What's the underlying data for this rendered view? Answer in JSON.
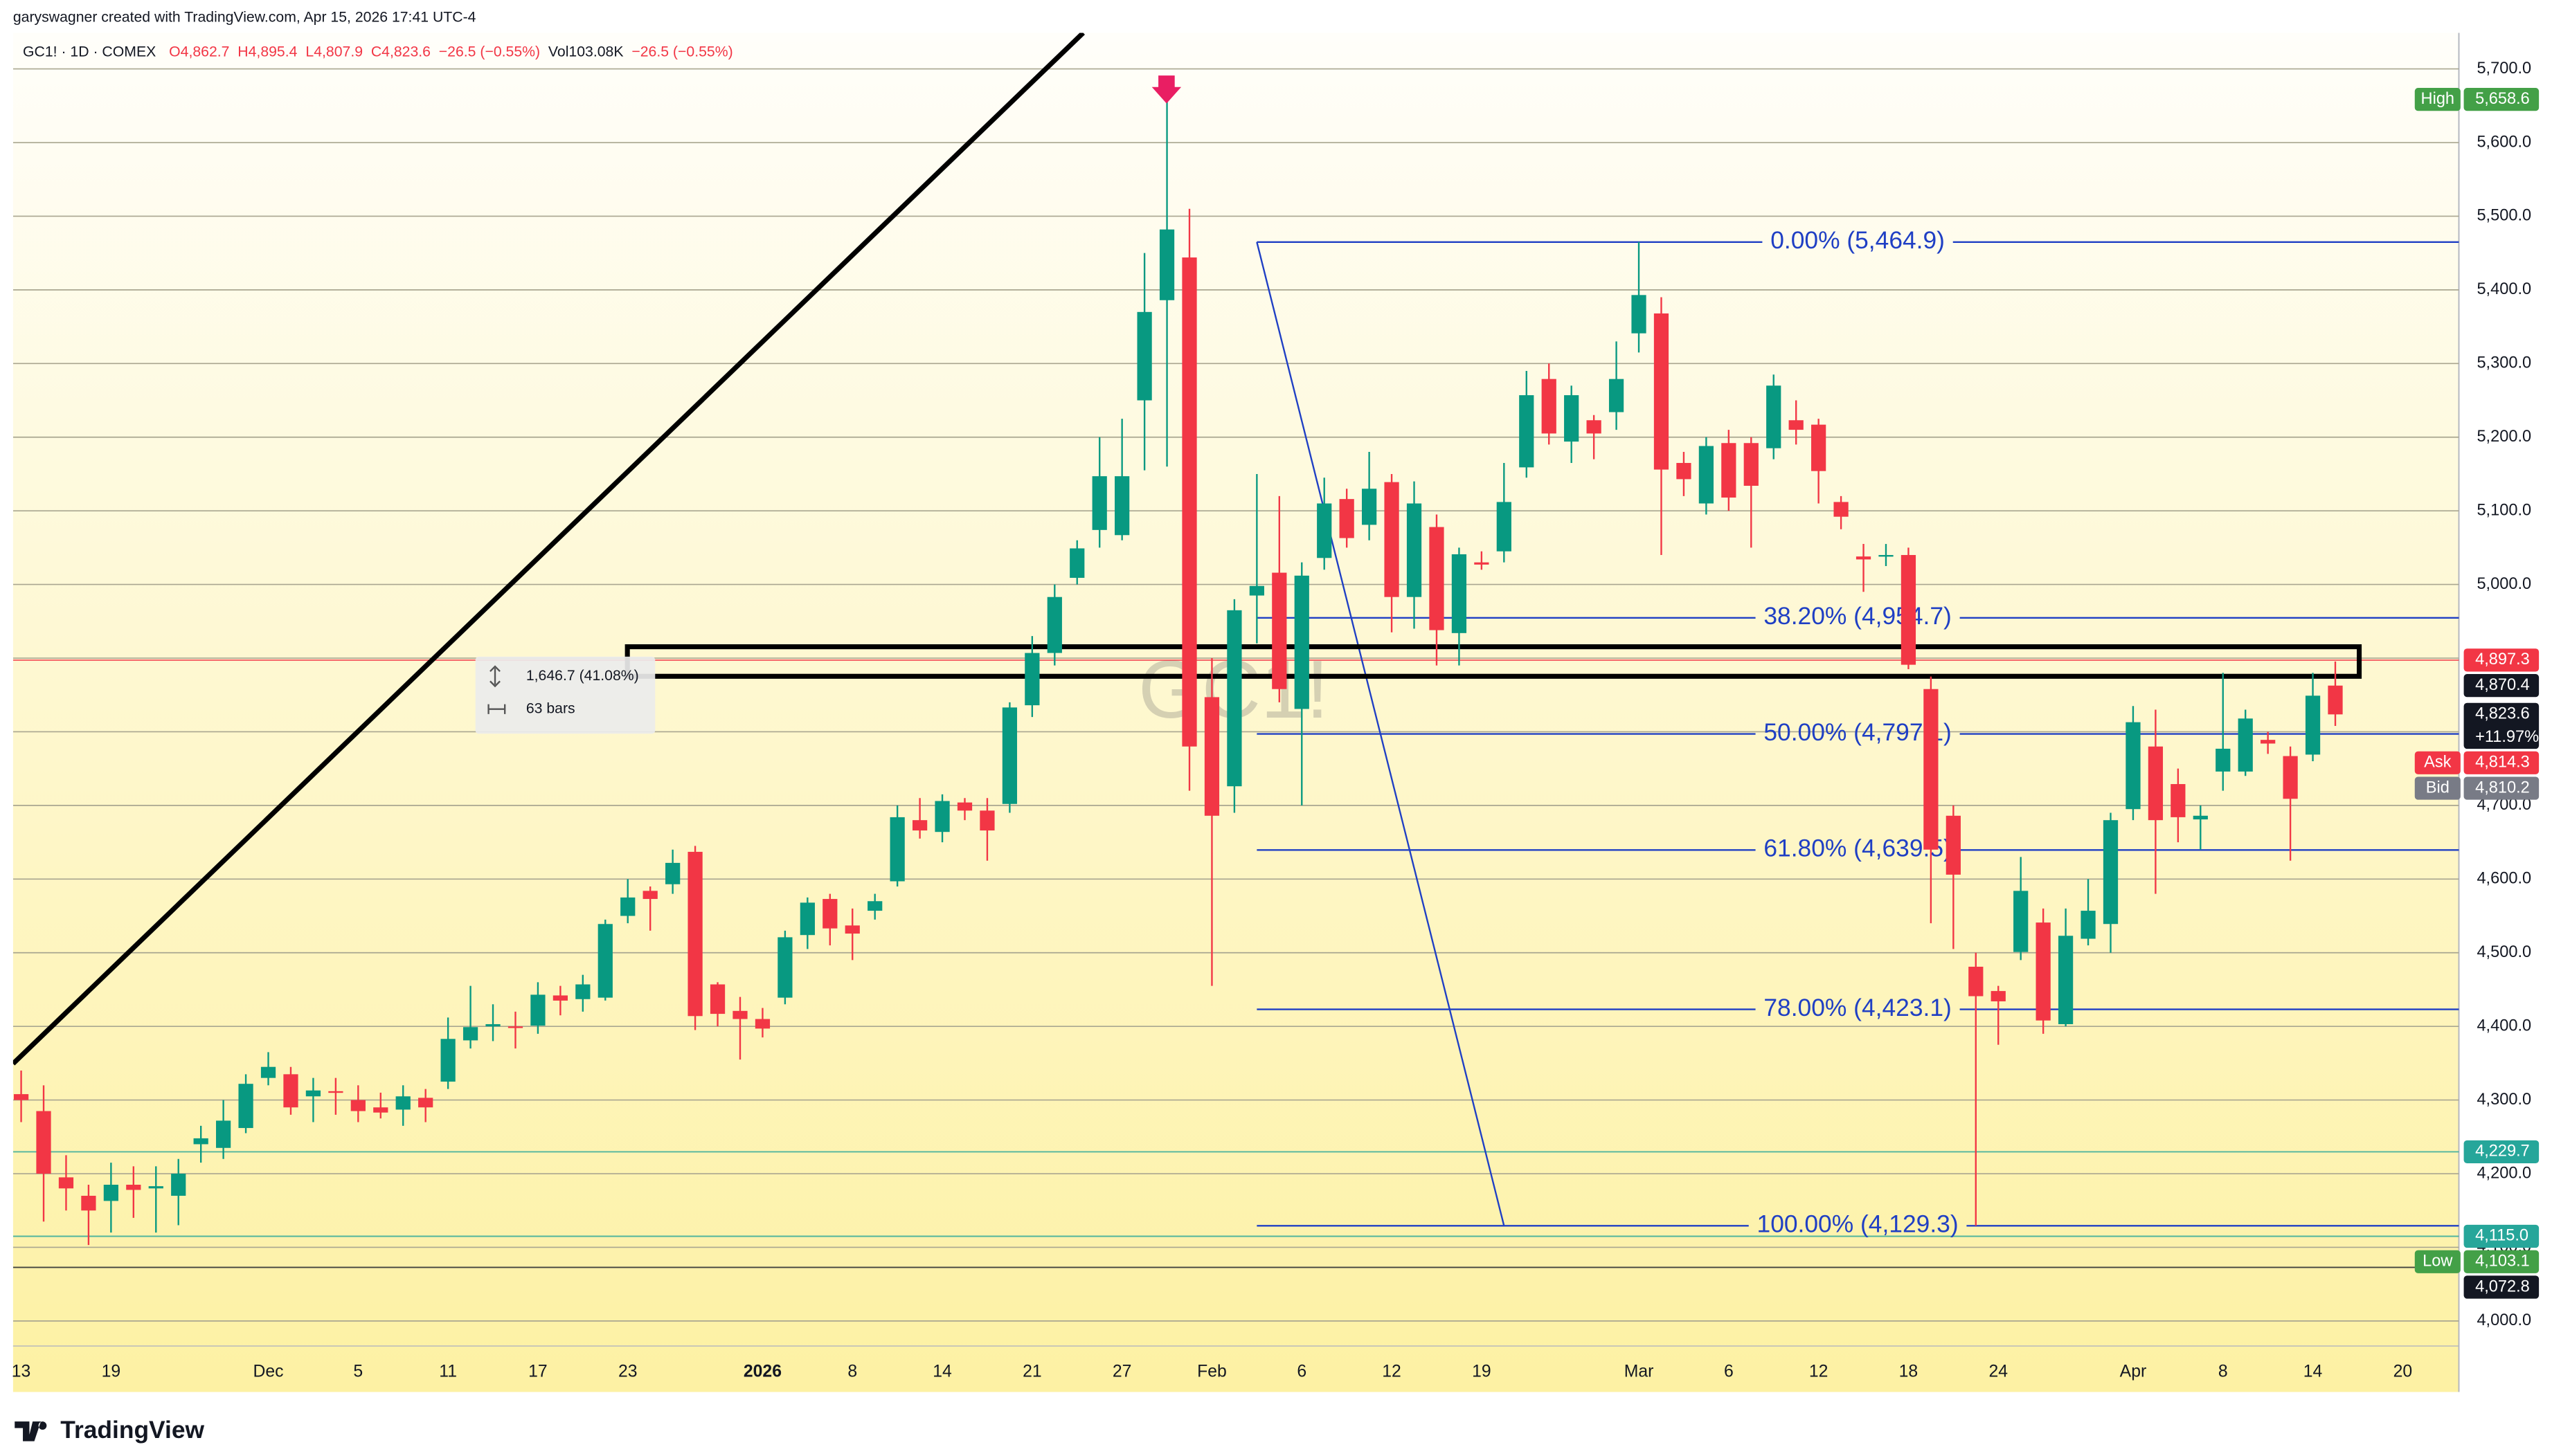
{
  "header": {
    "credit": "garyswagner created with TradingView.com, Apr 15, 2026 17:41 UTC-4",
    "symbol": "GC1! · 1D · COMEX",
    "ohlc": [
      "O4,862.7",
      "H4,895.4",
      "L4,807.9",
      "C4,823.6",
      "−26.5 (−0.55%)"
    ],
    "volume": [
      "Vol103.08K",
      "−26.5 (−0.55%)"
    ]
  },
  "measure": {
    "price": "1,646.7 (41.08%)",
    "bars": "63 bars"
  },
  "watermark": "GC1!",
  "footer": {
    "logo": "TradingView"
  },
  "chart_data": {
    "type": "candlestick",
    "up_color": "#089981",
    "down_color": "#f23645",
    "xlim": [
      -0.36,
      108.5
    ],
    "xticks": [
      {
        "value": 0,
        "label": "13"
      },
      {
        "value": 4,
        "label": "19"
      },
      {
        "value": 11,
        "label": "Dec"
      },
      {
        "value": 15,
        "label": "5"
      },
      {
        "value": 19,
        "label": "11"
      },
      {
        "value": 23,
        "label": "17"
      },
      {
        "value": 27,
        "label": "23"
      },
      {
        "value": 33,
        "label": "2026",
        "bold": true
      },
      {
        "value": 37,
        "label": "8"
      },
      {
        "value": 41,
        "label": "14"
      },
      {
        "value": 45,
        "label": "21"
      },
      {
        "value": 49,
        "label": "27"
      },
      {
        "value": 53,
        "label": "Feb"
      },
      {
        "value": 57,
        "label": "6"
      },
      {
        "value": 61,
        "label": "12"
      },
      {
        "value": 65,
        "label": "19"
      },
      {
        "value": 72,
        "label": "Mar"
      },
      {
        "value": 76,
        "label": "6"
      },
      {
        "value": 80,
        "label": "12"
      },
      {
        "value": 84,
        "label": "18"
      },
      {
        "value": 88,
        "label": "24"
      },
      {
        "value": 94,
        "label": "Apr"
      },
      {
        "value": 98,
        "label": "8"
      },
      {
        "value": 102,
        "label": "14"
      },
      {
        "value": 106,
        "label": "20"
      }
    ],
    "ylim": [
      3966,
      5749
    ],
    "yticks": [
      {
        "value": 4000,
        "label": "4,000.0"
      },
      {
        "value": 4100,
        "label": "4,100.0"
      },
      {
        "value": 4200,
        "label": "4,200.0"
      },
      {
        "value": 4300,
        "label": "4,300.0"
      },
      {
        "value": 4400,
        "label": "4,400.0"
      },
      {
        "value": 4500,
        "label": "4,500.0"
      },
      {
        "value": 4600,
        "label": "4,600.0"
      },
      {
        "value": 4700,
        "label": "4,700.0"
      },
      {
        "value": 4800,
        "label": "4,800.0"
      },
      {
        "value": 4900,
        "label": "4,900.0"
      },
      {
        "value": 5000,
        "label": "5,000.0"
      },
      {
        "value": 5100,
        "label": "5,100.0"
      },
      {
        "value": 5200,
        "label": "5,200.0"
      },
      {
        "value": 5300,
        "label": "5,300.0"
      },
      {
        "value": 5400,
        "label": "5,400.0"
      },
      {
        "value": 5500,
        "label": "5,500.0"
      },
      {
        "value": 5600,
        "label": "5,600.0"
      },
      {
        "value": 5700,
        "label": "5,700.0"
      }
    ],
    "grid": true,
    "open": [
      4308,
      4285,
      4195,
      4170,
      4163,
      4185,
      4180,
      4170,
      4240,
      4235,
      4262,
      4330,
      4335,
      4305,
      4312,
      4300,
      4290,
      4287,
      4303,
      4325,
      4381,
      4400,
      4400,
      4401,
      4442,
      4437,
      4439,
      4550,
      4584,
      4593,
      4637,
      4457,
      4421,
      4410,
      4439,
      4524,
      4573,
      4537,
      4557,
      4597,
      4680,
      4664,
      4704,
      4693,
      4702,
      4836,
      4907,
      5009,
      5074,
      5067,
      5250,
      5386,
      5444,
      4847,
      4726,
      4985,
      5016,
      4831,
      5036,
      5116,
      5081,
      5139,
      4983,
      5078,
      4934,
      5030,
      5045,
      5159,
      5279,
      5194,
      5223,
      5234,
      5341,
      5368,
      5165,
      5110,
      5192,
      5192,
      5185,
      5223,
      5217,
      5112,
      5038,
      5038,
      5040,
      4858,
      4686,
      4481,
      4448,
      4501,
      4541,
      4403,
      4519,
      4539,
      4695,
      4780,
      4729,
      4681,
      4746,
      4746,
      4789,
      4767,
      4769,
      4862.7
    ],
    "high": [
      4340,
      4320,
      4225,
      4185,
      4215,
      4210,
      4210,
      4220,
      4265,
      4300,
      4335,
      4365,
      4345,
      4330,
      4330,
      4320,
      4310,
      4320,
      4315,
      4412,
      4455,
      4430,
      4420,
      4460,
      4455,
      4470,
      4545,
      4600,
      4590,
      4640,
      4645,
      4460,
      4440,
      4425,
      4530,
      4575,
      4580,
      4560,
      4580,
      4700,
      4710,
      4715,
      4710,
      4710,
      4840,
      4930,
      5000,
      5060,
      5200,
      5225,
      5450,
      5658.6,
      5510,
      4900,
      4980,
      5150,
      5120,
      5030,
      5145,
      5130,
      5180,
      5150,
      5140,
      5095,
      5050,
      5045,
      5165,
      5290,
      5300,
      5270,
      5230,
      5330,
      5464.9,
      5390,
      5180,
      5200,
      5210,
      5200,
      5285,
      5250,
      5225,
      5120,
      5055,
      5055,
      5050,
      4875,
      4700,
      4500,
      4455,
      4630,
      4560,
      4560,
      4600,
      4690,
      4835,
      4830,
      4750,
      4700,
      4880,
      4830,
      4800,
      4780,
      4880,
      4895.4
    ],
    "low": [
      4270,
      4135,
      4150,
      4103.1,
      4120,
      4140,
      4120,
      4130,
      4215,
      4220,
      4255,
      4320,
      4280,
      4270,
      4280,
      4270,
      4275,
      4265,
      4270,
      4315,
      4370,
      4380,
      4370,
      4390,
      4415,
      4420,
      4435,
      4540,
      4530,
      4580,
      4395,
      4400,
      4355,
      4385,
      4430,
      4505,
      4510,
      4490,
      4545,
      4590,
      4655,
      4650,
      4680,
      4625,
      4690,
      4820,
      4890,
      5000,
      5050,
      5060,
      5155,
      5160,
      4720,
      4455,
      4690,
      4920,
      4840,
      4700,
      5020,
      5050,
      5060,
      4935,
      4940,
      4890,
      4890,
      5020,
      5030,
      5145,
      5190,
      5165,
      5170,
      5210,
      5315,
      5040,
      5120,
      5095,
      5100,
      5050,
      5170,
      5190,
      5110,
      5075,
      4990,
      5025,
      4885,
      4540,
      4505,
      4129.3,
      4375,
      4490,
      4390,
      4400,
      4510,
      4500,
      4680,
      4580,
      4650,
      4640,
      4720,
      4740,
      4770,
      4625,
      4760,
      4807.9
    ],
    "close": [
      4300,
      4200,
      4180,
      4150,
      4185,
      4178,
      4183,
      4200,
      4248,
      4272,
      4322,
      4345,
      4290,
      4313,
      4310,
      4285,
      4283,
      4305,
      4290,
      4383,
      4399,
      4403,
      4398,
      4443,
      4435,
      4457,
      4539,
      4575,
      4573,
      4622,
      4414,
      4417,
      4410,
      4397,
      4521,
      4568,
      4533,
      4526,
      4570,
      4684,
      4666,
      4706,
      4693,
      4666,
      4833,
      4907,
      4983,
      5049,
      5147,
      5147,
      5370,
      5482,
      4780,
      4686,
      4965,
      4998,
      4858,
      5012,
      5110,
      5063,
      5130,
      4983,
      5110,
      4938,
      5041,
      5027,
      5112,
      5257,
      5205,
      5257,
      5205,
      5279,
      5393,
      5156,
      5143,
      5188,
      5118,
      5134,
      5270,
      5210,
      5154,
      5092,
      5034,
      5040,
      4891,
      4640,
      4606,
      4441,
      4434,
      4584,
      4408,
      4523,
      4557,
      4680,
      4813,
      4680,
      4684,
      4686,
      4777,
      4818,
      4784,
      4709,
      4849,
      4823.6
    ],
    "fib_color": "#1f3fc4",
    "fib_levels": [
      {
        "value": 5464.9,
        "label": "0.00% (5,464.9)"
      },
      {
        "value": 4954.7,
        "label": "38.20% (4,954.7)"
      },
      {
        "value": 4797.1,
        "label": "50.00% (4,797.1)"
      },
      {
        "value": 4639.5,
        "label": "61.80% (4,639.5)"
      },
      {
        "value": 4423.1,
        "label": "78.00% (4,423.1)"
      },
      {
        "value": 4129.3,
        "label": "100.00% (4,129.3)"
      }
    ],
    "price_labels": [
      {
        "value": 5658.6,
        "label": "5,658.6",
        "tag": "High",
        "color": "#43a047"
      },
      {
        "value": 4897.3,
        "label": "4,897.3",
        "color": "#f23645",
        "line": true
      },
      {
        "value": 4870.4,
        "label": "4,870.4",
        "color": "#131722"
      },
      {
        "value": 4823.6,
        "label": "4,823.6",
        "sub": "+11.97%",
        "color": "#131722"
      },
      {
        "value": 4814.3,
        "label": "4,814.3",
        "tag": "Ask",
        "color": "#f23645"
      },
      {
        "value": 4810.2,
        "label": "4,810.2",
        "tag": "Bid",
        "color": "#787b86"
      },
      {
        "value": 4229.7,
        "label": "4,229.7",
        "color": "#26a69a",
        "line": true
      },
      {
        "value": 4115.0,
        "label": "4,115.0",
        "color": "#26a69a",
        "line": true
      },
      {
        "value": 4103.1,
        "label": "4,103.1",
        "tag": "Low",
        "color": "#43a047"
      },
      {
        "value": 4072.8,
        "label": "4,072.8",
        "color": "#131722",
        "line": true
      }
    ]
  }
}
